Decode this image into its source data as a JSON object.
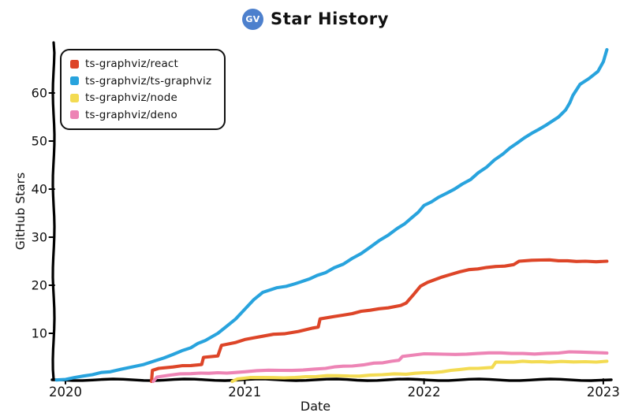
{
  "header": {
    "title": "Star History",
    "logo_text": "GV",
    "logo_color": "#4d80cd"
  },
  "chart_data": {
    "type": "line",
    "title": "Star History",
    "xlabel": "Date",
    "ylabel": "GitHub Stars",
    "x_ticks": [
      2020,
      2021,
      2022,
      2023
    ],
    "x_tick_labels": [
      "2020",
      "2021",
      "2022",
      "2023"
    ],
    "y_ticks": [
      10,
      20,
      30,
      40,
      50,
      60
    ],
    "xlim": [
      2019.93,
      2023.05
    ],
    "ylim": [
      0,
      70
    ],
    "grid": false,
    "legend_position": "top-left",
    "series": [
      {
        "name": "ts-graphviz/react",
        "color": "#dd4528",
        "points": [
          [
            2020.48,
            0
          ],
          [
            2020.485,
            2.3
          ],
          [
            2020.52,
            2.7
          ],
          [
            2020.6,
            3.0
          ],
          [
            2020.7,
            3.3
          ],
          [
            2020.76,
            3.5
          ],
          [
            2020.77,
            5.0
          ],
          [
            2020.85,
            5.3
          ],
          [
            2020.87,
            7.5
          ],
          [
            2020.95,
            8.1
          ],
          [
            2021.0,
            8.7
          ],
          [
            2021.1,
            9.4
          ],
          [
            2021.22,
            9.9
          ],
          [
            2021.3,
            10.4
          ],
          [
            2021.38,
            11.1
          ],
          [
            2021.41,
            11.3
          ],
          [
            2021.42,
            13.0
          ],
          [
            2021.5,
            13.5
          ],
          [
            2021.6,
            14.1
          ],
          [
            2021.7,
            14.8
          ],
          [
            2021.8,
            15.3
          ],
          [
            2021.87,
            15.8
          ],
          [
            2021.9,
            16.3
          ],
          [
            2021.94,
            18.0
          ],
          [
            2021.98,
            19.8
          ],
          [
            2022.02,
            20.6
          ],
          [
            2022.1,
            21.7
          ],
          [
            2022.2,
            22.8
          ],
          [
            2022.3,
            23.4
          ],
          [
            2022.4,
            23.9
          ],
          [
            2022.5,
            24.3
          ],
          [
            2022.53,
            25.0
          ],
          [
            2022.6,
            25.2
          ],
          [
            2022.75,
            25.1
          ],
          [
            2022.9,
            25.0
          ],
          [
            2023.02,
            25.0
          ]
        ]
      },
      {
        "name": "ts-graphviz/ts-graphviz",
        "color": "#28a3dd",
        "points": [
          [
            2019.95,
            0.3
          ],
          [
            2020.05,
            0.8
          ],
          [
            2020.15,
            1.4
          ],
          [
            2020.25,
            2.0
          ],
          [
            2020.37,
            3.0
          ],
          [
            2020.5,
            4.3
          ],
          [
            2020.6,
            5.6
          ],
          [
            2020.7,
            7.0
          ],
          [
            2020.78,
            8.5
          ],
          [
            2020.85,
            10.0
          ],
          [
            2020.9,
            11.5
          ],
          [
            2020.95,
            13.0
          ],
          [
            2021.0,
            15.0
          ],
          [
            2021.05,
            17.0
          ],
          [
            2021.1,
            18.5
          ],
          [
            2021.18,
            19.5
          ],
          [
            2021.28,
            20.3
          ],
          [
            2021.36,
            21.3
          ],
          [
            2021.45,
            22.6
          ],
          [
            2021.55,
            24.4
          ],
          [
            2021.65,
            26.6
          ],
          [
            2021.75,
            29.3
          ],
          [
            2021.85,
            31.8
          ],
          [
            2021.93,
            34.0
          ],
          [
            2022.0,
            36.6
          ],
          [
            2022.08,
            38.3
          ],
          [
            2022.17,
            40.0
          ],
          [
            2022.26,
            42.0
          ],
          [
            2022.35,
            44.6
          ],
          [
            2022.44,
            47.3
          ],
          [
            2022.52,
            49.6
          ],
          [
            2022.6,
            51.6
          ],
          [
            2022.68,
            53.3
          ],
          [
            2022.75,
            55.0
          ],
          [
            2022.79,
            56.5
          ],
          [
            2022.83,
            59.5
          ],
          [
            2022.87,
            61.8
          ],
          [
            2022.92,
            63.0
          ],
          [
            2022.97,
            64.5
          ],
          [
            2023.0,
            66.5
          ],
          [
            2023.02,
            69.0
          ]
        ]
      },
      {
        "name": "ts-graphviz/node",
        "color": "#f3db52",
        "points": [
          [
            2020.93,
            0
          ],
          [
            2020.96,
            0.5
          ],
          [
            2021.1,
            0.8
          ],
          [
            2021.4,
            1.0
          ],
          [
            2021.7,
            1.3
          ],
          [
            2021.9,
            1.5
          ],
          [
            2022.0,
            1.8
          ],
          [
            2022.15,
            2.3
          ],
          [
            2022.3,
            2.7
          ],
          [
            2022.38,
            2.9
          ],
          [
            2022.4,
            4.0
          ],
          [
            2022.55,
            4.2
          ],
          [
            2022.7,
            4.0
          ],
          [
            2022.9,
            4.1
          ],
          [
            2023.02,
            4.2
          ]
        ]
      },
      {
        "name": "ts-graphviz/deno",
        "color": "#ed84b5",
        "points": [
          [
            2020.49,
            0
          ],
          [
            2020.51,
            0.9
          ],
          [
            2020.58,
            1.3
          ],
          [
            2020.7,
            1.6
          ],
          [
            2020.85,
            1.8
          ],
          [
            2021.0,
            2.0
          ],
          [
            2021.2,
            2.3
          ],
          [
            2021.45,
            2.7
          ],
          [
            2021.6,
            3.2
          ],
          [
            2021.72,
            3.8
          ],
          [
            2021.82,
            4.2
          ],
          [
            2021.86,
            4.4
          ],
          [
            2021.88,
            5.2
          ],
          [
            2021.95,
            5.5
          ],
          [
            2022.05,
            5.7
          ],
          [
            2022.3,
            5.8
          ],
          [
            2022.55,
            5.8
          ],
          [
            2022.75,
            5.9
          ],
          [
            2022.87,
            6.1
          ],
          [
            2022.95,
            6.0
          ],
          [
            2023.02,
            5.9
          ]
        ]
      }
    ]
  },
  "colors": {
    "axis": "#000000",
    "text": "#111111",
    "background": "#ffffff"
  }
}
